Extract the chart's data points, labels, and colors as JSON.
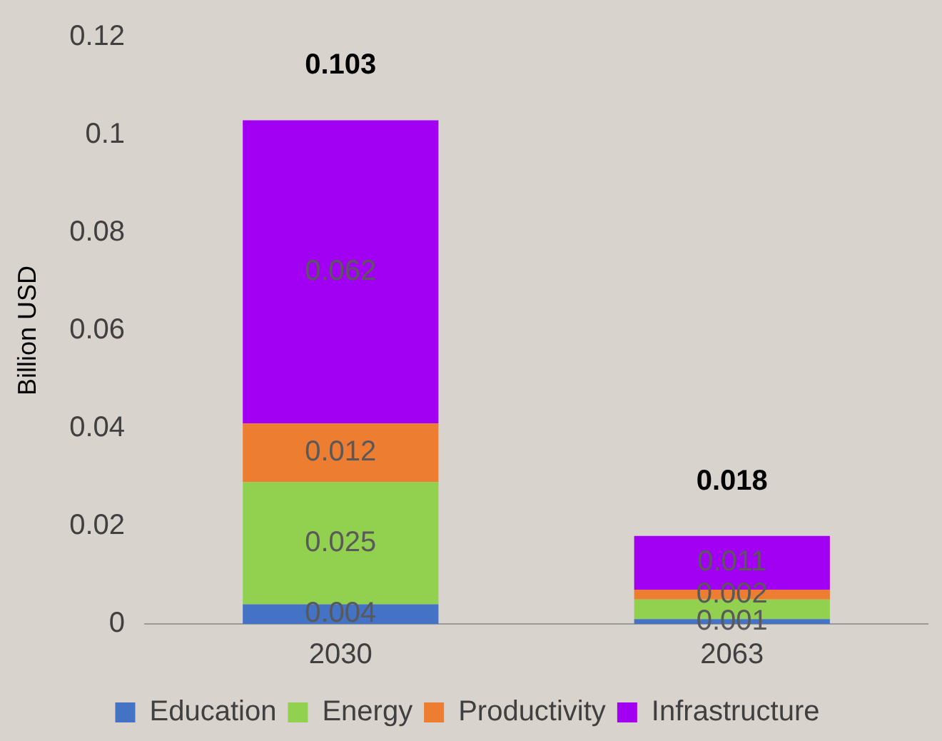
{
  "chart_data": {
    "type": "bar",
    "stacked": true,
    "ylabel": "Billion USD",
    "categories": [
      "2030",
      "2063"
    ],
    "series": [
      {
        "name": "Education",
        "color": "#4472c4",
        "values": [
          0.004,
          0.001
        ],
        "value_labels": [
          "0.004",
          "0.001"
        ]
      },
      {
        "name": "Energy",
        "color": "#92d050",
        "values": [
          0.025,
          0.004
        ],
        "value_labels": [
          "0.025",
          null
        ]
      },
      {
        "name": "Productivity",
        "color": "#ed7d31",
        "values": [
          0.012,
          0.002
        ],
        "value_labels": [
          "0.012",
          "0.002"
        ]
      },
      {
        "name": "Infrastructure",
        "color": "#a100f2",
        "values": [
          0.062,
          0.011
        ],
        "value_labels": [
          "0.062",
          "0.011"
        ]
      }
    ],
    "totals": [
      "0.103",
      "0.018"
    ],
    "ylim": [
      0,
      0.12
    ],
    "yticks": [
      0,
      0.02,
      0.04,
      0.06,
      0.08,
      0.1,
      0.12
    ],
    "grid": false,
    "legend": "bottom"
  }
}
